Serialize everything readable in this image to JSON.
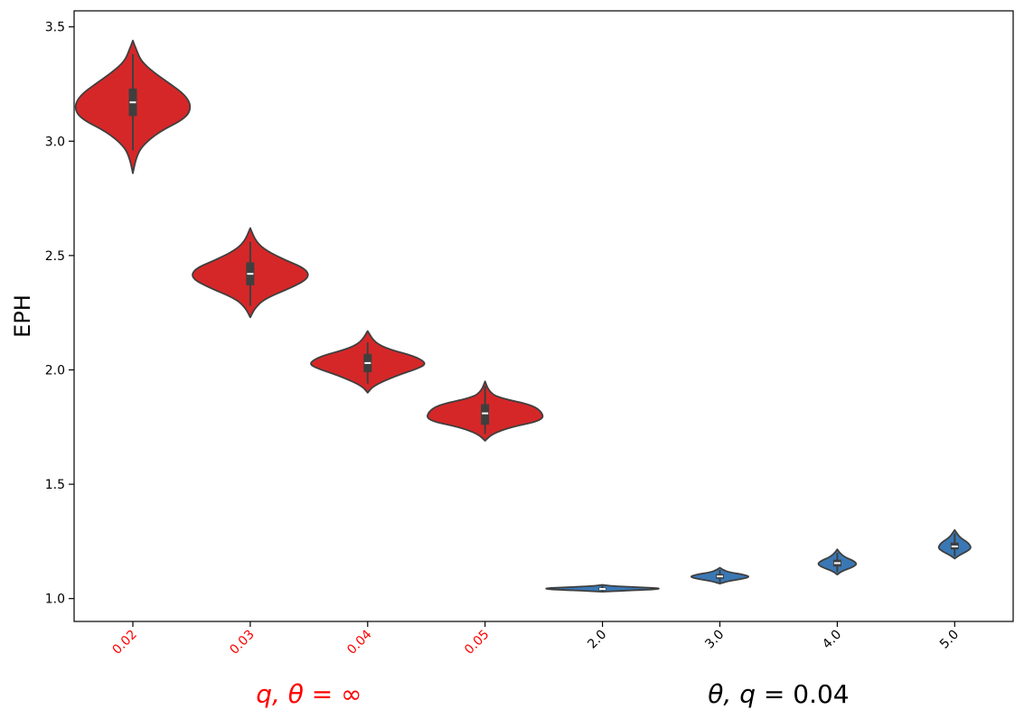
{
  "chart_data": {
    "type": "violin",
    "title": "",
    "xlabel": "",
    "ylabel": "EPH",
    "ylim": [
      0.9,
      3.57
    ],
    "yticks": [
      1.0,
      1.5,
      2.0,
      2.5,
      3.0,
      3.5
    ],
    "ytick_labels": [
      "1.0",
      "1.5",
      "2.0",
      "2.5",
      "3.0",
      "3.5"
    ],
    "grid": false,
    "categories": [
      "0.02",
      "0.03",
      "0.04",
      "0.05",
      "2.0",
      "3.0",
      "4.0",
      "5.0"
    ],
    "category_colors": [
      "#ff0000",
      "#ff0000",
      "#ff0000",
      "#ff0000",
      "#000000",
      "#000000",
      "#000000",
      "#000000"
    ],
    "groups": [
      {
        "label_prefix": "q, θ = ",
        "label_suffix": "∞",
        "color": "#ff0000",
        "categories": [
          0,
          1,
          2,
          3
        ]
      },
      {
        "label_prefix": "θ, q = ",
        "label_suffix": "0.04",
        "color": "#000000",
        "categories": [
          4,
          5,
          6,
          7
        ]
      }
    ],
    "series": [
      {
        "group": 0,
        "color": "#d62728",
        "min": 2.86,
        "max": 3.44,
        "q1": 3.11,
        "median": 3.17,
        "q3": 3.23,
        "whisker_low": 2.96,
        "whisker_high": 3.38,
        "shape": [
          [
            2.86,
            0.0
          ],
          [
            2.93,
            0.03
          ],
          [
            2.98,
            0.08
          ],
          [
            3.04,
            0.22
          ],
          [
            3.1,
            0.45
          ],
          [
            3.15,
            0.5
          ],
          [
            3.2,
            0.45
          ],
          [
            3.25,
            0.32
          ],
          [
            3.3,
            0.18
          ],
          [
            3.35,
            0.07
          ],
          [
            3.4,
            0.03
          ],
          [
            3.44,
            0.0
          ]
        ]
      },
      {
        "group": 0,
        "color": "#d62728",
        "min": 2.23,
        "max": 2.62,
        "q1": 2.37,
        "median": 2.42,
        "q3": 2.47,
        "whisker_low": 2.28,
        "whisker_high": 2.56,
        "shape": [
          [
            2.23,
            0.0
          ],
          [
            2.27,
            0.04
          ],
          [
            2.31,
            0.12
          ],
          [
            2.36,
            0.35
          ],
          [
            2.4,
            0.5
          ],
          [
            2.44,
            0.48
          ],
          [
            2.48,
            0.3
          ],
          [
            2.52,
            0.14
          ],
          [
            2.56,
            0.05
          ],
          [
            2.62,
            0.0
          ]
        ]
      },
      {
        "group": 0,
        "color": "#d62728",
        "min": 1.9,
        "max": 2.17,
        "q1": 1.99,
        "median": 2.03,
        "q3": 2.07,
        "whisker_low": 1.94,
        "whisker_high": 2.12,
        "shape": [
          [
            1.9,
            0.0
          ],
          [
            1.93,
            0.05
          ],
          [
            1.97,
            0.22
          ],
          [
            2.01,
            0.45
          ],
          [
            2.03,
            0.5
          ],
          [
            2.06,
            0.4
          ],
          [
            2.09,
            0.18
          ],
          [
            2.12,
            0.06
          ],
          [
            2.17,
            0.0
          ]
        ]
      },
      {
        "group": 0,
        "color": "#d62728",
        "min": 1.69,
        "max": 1.95,
        "q1": 1.76,
        "median": 1.81,
        "q3": 1.85,
        "whisker_low": 1.72,
        "whisker_high": 1.93,
        "shape": [
          [
            1.69,
            0.0
          ],
          [
            1.72,
            0.06
          ],
          [
            1.75,
            0.22
          ],
          [
            1.78,
            0.5
          ],
          [
            1.82,
            0.48
          ],
          [
            1.85,
            0.38
          ],
          [
            1.88,
            0.1
          ],
          [
            1.91,
            0.03
          ],
          [
            1.95,
            0.0
          ]
        ]
      },
      {
        "group": 1,
        "color": "#3a78b5",
        "min": 1.03,
        "max": 1.06,
        "q1": 1.037,
        "median": 1.042,
        "q3": 1.048,
        "whisker_low": 1.032,
        "whisker_high": 1.056,
        "shape": [
          [
            1.03,
            0.0
          ],
          [
            1.035,
            0.2
          ],
          [
            1.04,
            0.45
          ],
          [
            1.045,
            0.5
          ],
          [
            1.05,
            0.28
          ],
          [
            1.055,
            0.08
          ],
          [
            1.06,
            0.0
          ]
        ]
      },
      {
        "group": 1,
        "color": "#3a78b5",
        "min": 1.065,
        "max": 1.135,
        "q1": 1.087,
        "median": 1.097,
        "q3": 1.107,
        "whisker_low": 1.07,
        "whisker_high": 1.125,
        "shape": [
          [
            1.065,
            0.0
          ],
          [
            1.075,
            0.06
          ],
          [
            1.085,
            0.18
          ],
          [
            1.095,
            0.26
          ],
          [
            1.105,
            0.2
          ],
          [
            1.115,
            0.08
          ],
          [
            1.125,
            0.03
          ],
          [
            1.135,
            0.0
          ]
        ]
      },
      {
        "group": 1,
        "color": "#3a78b5",
        "min": 1.105,
        "max": 1.215,
        "q1": 1.14,
        "median": 1.155,
        "q3": 1.17,
        "whisker_low": 1.115,
        "whisker_high": 1.2,
        "shape": [
          [
            1.105,
            0.0
          ],
          [
            1.12,
            0.04
          ],
          [
            1.135,
            0.12
          ],
          [
            1.15,
            0.17
          ],
          [
            1.165,
            0.14
          ],
          [
            1.18,
            0.07
          ],
          [
            1.195,
            0.03
          ],
          [
            1.215,
            0.0
          ]
        ]
      },
      {
        "group": 1,
        "color": "#3a78b5",
        "min": 1.175,
        "max": 1.3,
        "q1": 1.215,
        "median": 1.228,
        "q3": 1.245,
        "whisker_low": 1.185,
        "whisker_high": 1.285,
        "shape": [
          [
            1.175,
            0.0
          ],
          [
            1.19,
            0.04
          ],
          [
            1.205,
            0.1
          ],
          [
            1.22,
            0.14
          ],
          [
            1.235,
            0.13
          ],
          [
            1.25,
            0.1
          ],
          [
            1.265,
            0.05
          ],
          [
            1.285,
            0.02
          ],
          [
            1.3,
            0.0
          ]
        ]
      }
    ]
  }
}
